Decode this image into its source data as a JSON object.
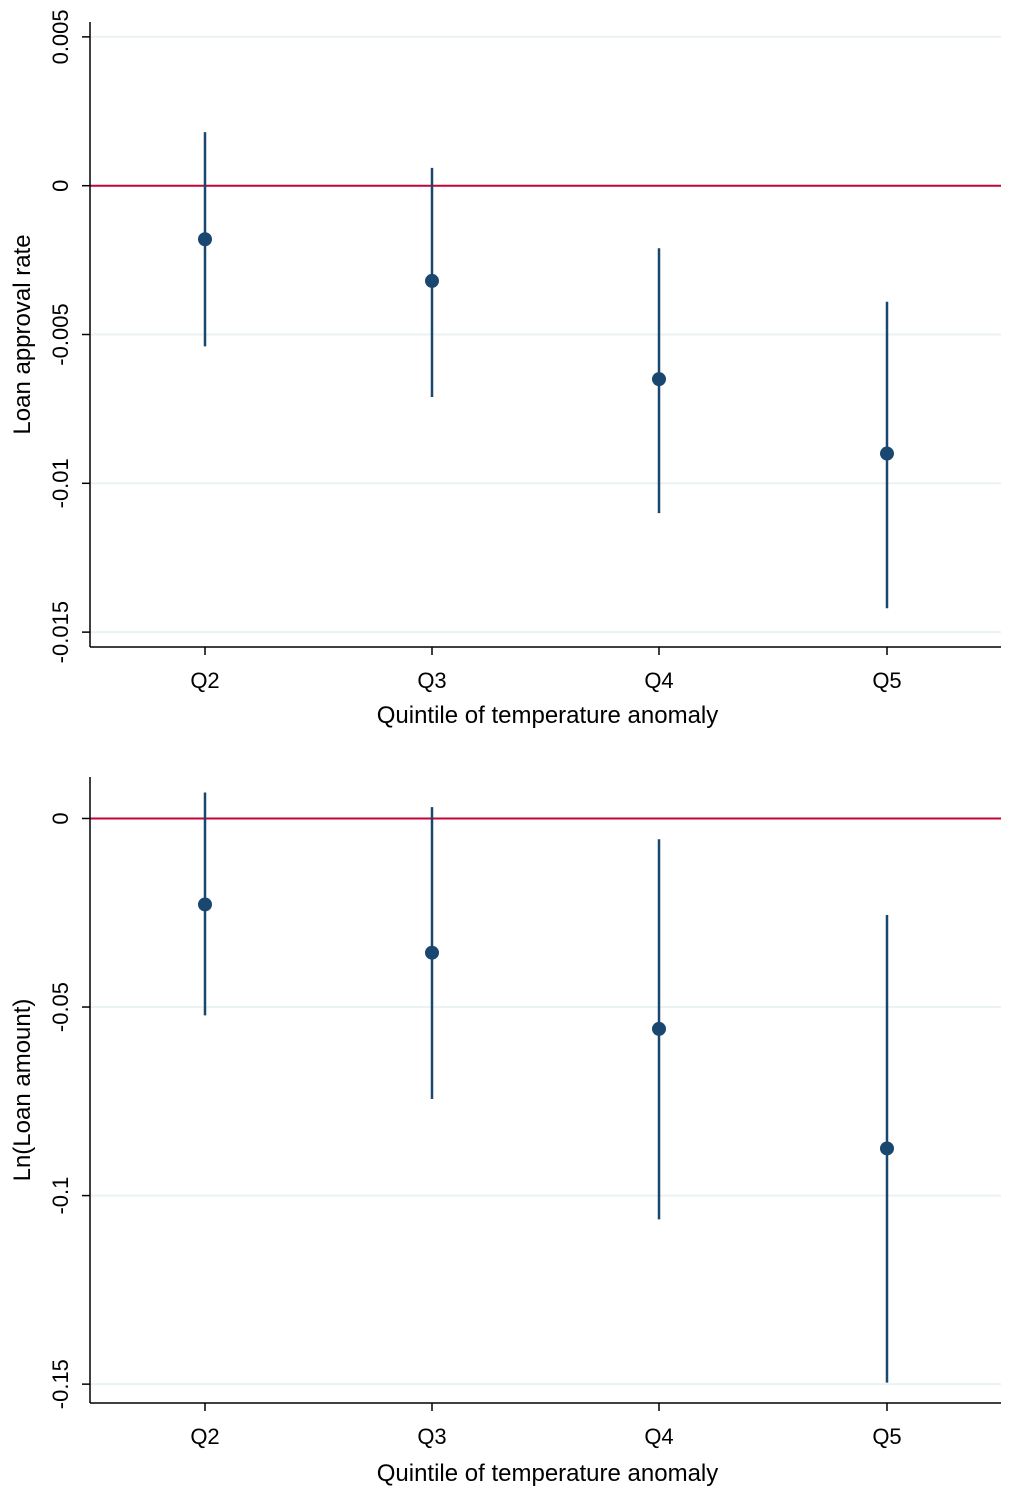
{
  "colors": {
    "marker": "#1a476f",
    "ci_line": "#1a476f",
    "zero_line": "#c10534",
    "gridline": "#eaf2f3",
    "axis": "#000000"
  },
  "chart_data": [
    {
      "type": "scatter",
      "subtype": "coefficient-plot-with-confidence-intervals",
      "categories": [
        "Q2",
        "Q3",
        "Q4",
        "Q5"
      ],
      "xlabel": "Quintile of temperature anomaly",
      "ylabel": "Loan approval rate",
      "ylim": [
        -0.0155,
        0.0055
      ],
      "yticks": [
        0.005,
        0,
        -0.005,
        -0.01,
        -0.015
      ],
      "ytick_labels": [
        "0.005",
        "0",
        "-0.005",
        "-0.01",
        "-0.015"
      ],
      "reference_line": 0,
      "grid": true,
      "series": [
        {
          "estimates": [
            -0.0018,
            -0.0032,
            -0.0065,
            -0.009
          ],
          "ci_low": [
            -0.0054,
            -0.0071,
            -0.011,
            -0.0142
          ],
          "ci_high": [
            0.0018,
            0.0006,
            -0.0021,
            -0.0039
          ]
        }
      ]
    },
    {
      "type": "scatter",
      "subtype": "coefficient-plot-with-confidence-intervals",
      "categories": [
        "Q2",
        "Q3",
        "Q4",
        "Q5"
      ],
      "xlabel": "Quintile of temperature anomaly",
      "ylabel": "Ln(Loan amount)",
      "ylim": [
        -0.155,
        0.011
      ],
      "yticks": [
        0,
        -0.05,
        -0.1,
        -0.15
      ],
      "ytick_labels": [
        "0",
        "-0.05",
        "-0.1",
        "-0.15"
      ],
      "reference_line": 0,
      "grid": true,
      "series": [
        {
          "estimates": [
            -0.0228,
            -0.0356,
            -0.0558,
            -0.0875
          ],
          "ci_low": [
            -0.0522,
            -0.0744,
            -0.1063,
            -0.1496
          ],
          "ci_high": [
            0.0069,
            0.003,
            -0.0055,
            -0.0256
          ]
        }
      ]
    }
  ]
}
